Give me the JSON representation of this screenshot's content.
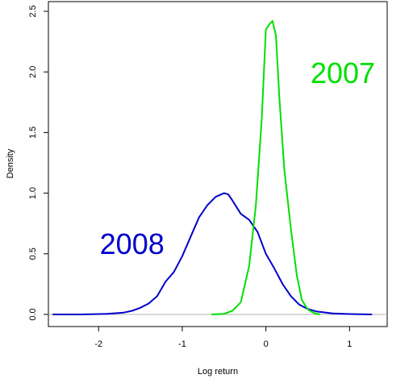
{
  "chart_data": {
    "type": "line",
    "title": "",
    "xlabel": "Log return",
    "ylabel": "Density",
    "xlim": [
      -2.6,
      1.45
    ],
    "ylim": [
      -0.1,
      2.58
    ],
    "x_ticks": [
      -2,
      -1,
      0,
      1
    ],
    "y_ticks": [
      0.0,
      0.5,
      1.0,
      1.5,
      2.0,
      2.5
    ],
    "x_tick_labels": [
      "-2",
      "-1",
      "0",
      "1"
    ],
    "y_tick_labels": [
      "0.0",
      "0.5",
      "1.0",
      "1.5",
      "2.0",
      "2.5"
    ],
    "baseline": {
      "y": 0,
      "color": "#b0b0b0"
    },
    "grid": false,
    "annotations": [
      {
        "text": "2008",
        "x": -1.6,
        "y": 0.58,
        "color": "#0000cc"
      },
      {
        "text": "2007",
        "x": 0.92,
        "y": 1.99,
        "color": "#00e000"
      }
    ],
    "series": [
      {
        "color": "#0000cc",
        "points": [
          [
            -2.55,
            0.0
          ],
          [
            -2.2,
            0.0
          ],
          [
            -1.9,
            0.005
          ],
          [
            -1.7,
            0.015
          ],
          [
            -1.6,
            0.03
          ],
          [
            -1.5,
            0.055
          ],
          [
            -1.4,
            0.09
          ],
          [
            -1.3,
            0.15
          ],
          [
            -1.2,
            0.27
          ],
          [
            -1.1,
            0.35
          ],
          [
            -1.0,
            0.48
          ],
          [
            -0.9,
            0.64
          ],
          [
            -0.8,
            0.8
          ],
          [
            -0.7,
            0.9
          ],
          [
            -0.6,
            0.97
          ],
          [
            -0.5,
            1.0
          ],
          [
            -0.45,
            0.99
          ],
          [
            -0.4,
            0.94
          ],
          [
            -0.3,
            0.83
          ],
          [
            -0.2,
            0.78
          ],
          [
            -0.1,
            0.68
          ],
          [
            0.0,
            0.5
          ],
          [
            0.1,
            0.38
          ],
          [
            0.2,
            0.25
          ],
          [
            0.3,
            0.15
          ],
          [
            0.4,
            0.08
          ],
          [
            0.5,
            0.045
          ],
          [
            0.6,
            0.025
          ],
          [
            0.8,
            0.008
          ],
          [
            1.0,
            0.003
          ],
          [
            1.27,
            0.0
          ]
        ]
      },
      {
        "color": "#00e000",
        "points": [
          [
            -0.65,
            0.0
          ],
          [
            -0.5,
            0.005
          ],
          [
            -0.4,
            0.03
          ],
          [
            -0.3,
            0.1
          ],
          [
            -0.2,
            0.4
          ],
          [
            -0.12,
            0.9
          ],
          [
            -0.05,
            1.6
          ],
          [
            0.0,
            2.35
          ],
          [
            0.05,
            2.4
          ],
          [
            0.08,
            2.42
          ],
          [
            0.12,
            2.3
          ],
          [
            0.16,
            1.8
          ],
          [
            0.22,
            1.2
          ],
          [
            0.3,
            0.7
          ],
          [
            0.37,
            0.32
          ],
          [
            0.43,
            0.12
          ],
          [
            0.5,
            0.04
          ],
          [
            0.58,
            0.01
          ],
          [
            0.65,
            0.0
          ]
        ]
      }
    ]
  }
}
